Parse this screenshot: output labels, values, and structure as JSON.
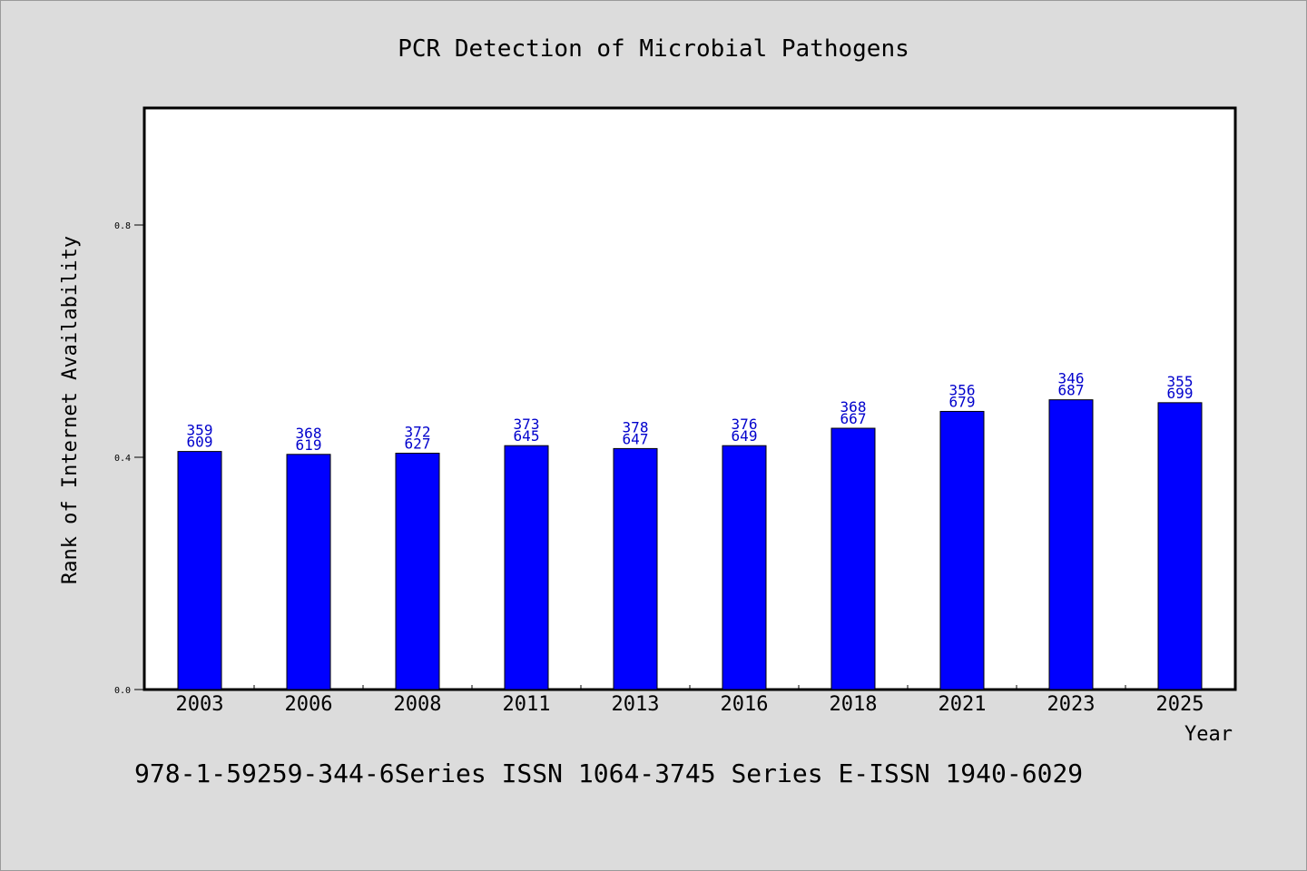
{
  "chart_data": {
    "type": "bar",
    "title": "PCR Detection of Microbial Pathogens",
    "xlabel": "Year",
    "ylabel": "Rank of Internet Availability",
    "categories": [
      "2003",
      "2006",
      "2008",
      "2011",
      "2013",
      "2016",
      "2018",
      "2021",
      "2023",
      "2025"
    ],
    "values": [
      0.41,
      0.405,
      0.407,
      0.42,
      0.415,
      0.42,
      0.45,
      0.479,
      0.499,
      0.494
    ],
    "data_labels": [
      [
        "359",
        "609"
      ],
      [
        "368",
        "619"
      ],
      [
        "372",
        "627"
      ],
      [
        "373",
        "645"
      ],
      [
        "378",
        "647"
      ],
      [
        "376",
        "649"
      ],
      [
        "368",
        "667"
      ],
      [
        "356",
        "679"
      ],
      [
        "346",
        "687"
      ],
      [
        "355",
        "699"
      ]
    ],
    "ylim": [
      0,
      1.0
    ],
    "yticks": [
      0.0,
      0.4,
      0.8
    ],
    "ytick_labels": [
      "0.0",
      "0.4",
      "0.8"
    ],
    "grid": false,
    "colors": {
      "bar": "#0000ff",
      "label": "#0000cc",
      "background": "#dcdcdc",
      "plot_background": "#ffffff"
    }
  },
  "footnote": "978-1-59259-344-6Series ISSN 1064-3745 Series E-ISSN 1940-6029"
}
